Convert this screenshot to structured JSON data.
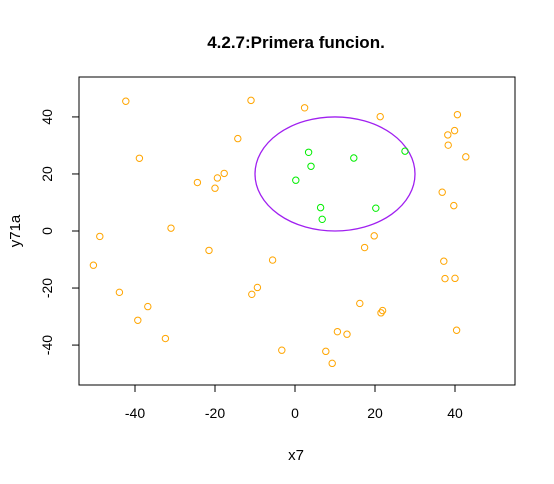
{
  "chart_data": {
    "type": "scatter",
    "title": "4.2.7:Primera funcion.",
    "xlabel": "x7",
    "ylabel": "y71a",
    "xlim": [
      -54,
      55
    ],
    "ylim": [
      -54,
      54
    ],
    "x_ticks": [
      -40,
      -20,
      0,
      20,
      40
    ],
    "y_ticks": [
      -40,
      -20,
      0,
      20,
      40
    ],
    "x_tick_labels": [
      "-40",
      "-20",
      "0",
      "20",
      "40"
    ],
    "y_tick_labels": [
      "-40",
      "-20",
      "0",
      "20",
      "40"
    ],
    "grid": false,
    "colors": {
      "outside": "#FFA500",
      "inside": "#00EE00",
      "circle": "#A020F0",
      "axes": "#000000"
    },
    "circle": {
      "center": [
        10,
        20
      ],
      "rx": 20,
      "ry": 20
    },
    "series": [
      {
        "color": "#FFA500",
        "points": [
          [
            -42.3,
            45.5
          ],
          [
            -11,
            45.8
          ],
          [
            2.4,
            43.2
          ],
          [
            21.3,
            40.1
          ],
          [
            40.6,
            40.8
          ],
          [
            -14.3,
            32.4
          ],
          [
            38.2,
            33.7
          ],
          [
            39.9,
            35.2
          ],
          [
            38.3,
            30.1
          ],
          [
            42.7,
            26
          ],
          [
            -38.9,
            25.5
          ],
          [
            -17.7,
            20.2
          ],
          [
            -19.4,
            18.6
          ],
          [
            -24.4,
            17
          ],
          [
            -20,
            15
          ],
          [
            36.8,
            13.6
          ],
          [
            39.7,
            8.9
          ],
          [
            -31,
            1
          ],
          [
            -48.8,
            -1.9
          ],
          [
            19.8,
            -1.7
          ],
          [
            17.4,
            -5.8
          ],
          [
            -21.5,
            -6.8
          ],
          [
            -50.4,
            -12
          ],
          [
            -5.6,
            -10.2
          ],
          [
            37.2,
            -10.6
          ],
          [
            -43.9,
            -21.5
          ],
          [
            -9.4,
            -19.8
          ],
          [
            -10.8,
            -22.2
          ],
          [
            37.5,
            -16.7
          ],
          [
            40,
            -16.6
          ],
          [
            -36.8,
            -26.5
          ],
          [
            16.2,
            -25.4
          ],
          [
            21.9,
            -27.9
          ],
          [
            21.5,
            -28.7
          ],
          [
            -39.3,
            -31.3
          ],
          [
            10.6,
            -35.3
          ],
          [
            13,
            -36.2
          ],
          [
            40.4,
            -34.8
          ],
          [
            -32.4,
            -37.7
          ],
          [
            -3.3,
            -41.8
          ],
          [
            7.7,
            -42.2
          ],
          [
            9.3,
            -46.4
          ]
        ]
      },
      {
        "color": "#00EE00",
        "points": [
          [
            3.4,
            27.6
          ],
          [
            14.7,
            25.6
          ],
          [
            27.5,
            28
          ],
          [
            4,
            22.7
          ],
          [
            0.2,
            17.8
          ],
          [
            6.4,
            8.2
          ],
          [
            20.2,
            8
          ],
          [
            6.8,
            4.1
          ]
        ]
      }
    ]
  }
}
